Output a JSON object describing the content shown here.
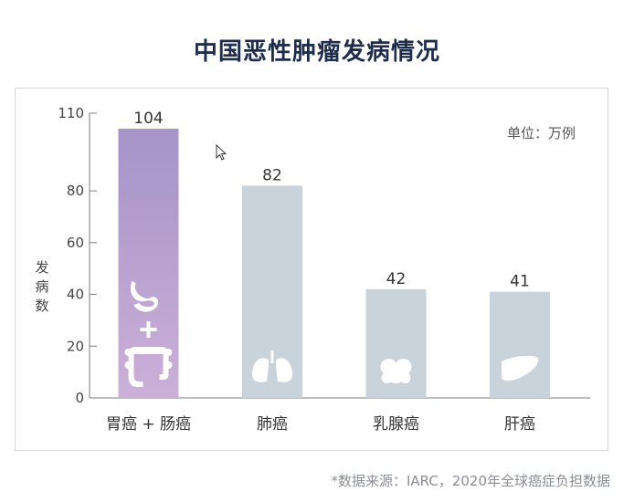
{
  "title": "中国恶性肿瘤发病情况",
  "source_note": "*数据来源：IARC，2020年全球癌症负担数据",
  "colors": {
    "title": "#1f2d4d",
    "bar_highlight_top": "#a693c8",
    "bar_highlight_bottom": "#cbb0d8",
    "bar_default": "#c8d3db",
    "axis": "#7a7d82",
    "text": "#333333"
  },
  "chart_data": {
    "type": "bar",
    "categories": [
      "胃癌 + 肠癌",
      "肺癌",
      "乳腺癌",
      "肝癌"
    ],
    "values": [
      104,
      82,
      42,
      41
    ],
    "icons": [
      "stomach-intestine-icon",
      "lungs-icon",
      "breast-icon",
      "liver-icon"
    ],
    "title": "",
    "xlabel": "",
    "ylabel": "发病数",
    "unit_label": "单位：万例",
    "ylim": [
      0,
      110
    ],
    "yticks": [
      0,
      20,
      40,
      60,
      80,
      110
    ],
    "grid": false,
    "highlight_index": 0
  }
}
